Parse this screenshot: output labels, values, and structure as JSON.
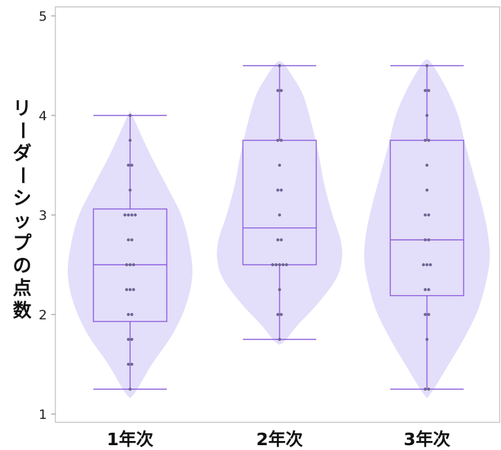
{
  "chart_data": {
    "type": "violin",
    "ylabel": "リーダーシップの点数",
    "ylim": [
      1,
      5
    ],
    "yticks": [
      1,
      2,
      3,
      4,
      5
    ],
    "grid": false,
    "colors": {
      "violin_fill": "#e3defa",
      "box_stroke": "#8a5bdc",
      "point": "#6e6690",
      "axis": "#c8c8c8"
    },
    "categories": [
      "1年次",
      "2年次",
      "3年次"
    ],
    "series": [
      {
        "category": "1年次",
        "min": 1.25,
        "q1": 1.93,
        "median": 2.5,
        "q3": 3.06,
        "max": 4.0,
        "points": [
          4.0,
          3.75,
          3.5,
          3.5,
          3.25,
          3.0,
          3.0,
          3.0,
          3.0,
          2.75,
          2.75,
          2.5,
          2.5,
          2.5,
          2.25,
          2.25,
          2.25,
          2.0,
          2.0,
          1.75,
          1.75,
          1.5,
          1.5,
          1.25
        ],
        "density": [
          [
            1.2,
            0.06
          ],
          [
            1.5,
            0.35
          ],
          [
            1.8,
            0.68
          ],
          [
            2.1,
            0.9
          ],
          [
            2.4,
            1.0
          ],
          [
            2.7,
            0.95
          ],
          [
            3.0,
            0.82
          ],
          [
            3.3,
            0.58
          ],
          [
            3.6,
            0.33
          ],
          [
            3.8,
            0.18
          ],
          [
            4.02,
            0.02
          ]
        ]
      },
      {
        "category": "2年次",
        "min": 1.75,
        "q1": 2.5,
        "median": 2.87,
        "q3": 3.75,
        "max": 4.5,
        "points": [
          4.5,
          4.25,
          4.25,
          3.75,
          3.75,
          3.5,
          3.25,
          3.25,
          3.0,
          2.75,
          2.75,
          2.5,
          2.5,
          2.5,
          2.5,
          2.5,
          2.25,
          2.0,
          2.0,
          1.75
        ],
        "density": [
          [
            1.72,
            0.06
          ],
          [
            1.9,
            0.3
          ],
          [
            2.1,
            0.6
          ],
          [
            2.35,
            0.9
          ],
          [
            2.55,
            1.0
          ],
          [
            2.75,
            0.98
          ],
          [
            3.0,
            0.85
          ],
          [
            3.3,
            0.72
          ],
          [
            3.6,
            0.63
          ],
          [
            3.9,
            0.52
          ],
          [
            4.2,
            0.38
          ],
          [
            4.4,
            0.2
          ],
          [
            4.53,
            0.05
          ]
        ]
      },
      {
        "category": "3年次",
        "min": 1.25,
        "q1": 2.19,
        "median": 2.75,
        "q3": 3.75,
        "max": 4.5,
        "points": [
          4.5,
          4.25,
          4.25,
          4.0,
          3.75,
          3.75,
          3.5,
          3.25,
          3.0,
          3.0,
          2.75,
          2.75,
          2.5,
          2.5,
          2.5,
          2.25,
          2.25,
          2.0,
          2.0,
          1.75,
          1.25,
          1.25
        ],
        "density": [
          [
            1.2,
            0.05
          ],
          [
            1.5,
            0.35
          ],
          [
            1.8,
            0.63
          ],
          [
            2.1,
            0.85
          ],
          [
            2.5,
            1.0
          ],
          [
            2.8,
            0.98
          ],
          [
            3.1,
            0.88
          ],
          [
            3.4,
            0.75
          ],
          [
            3.7,
            0.62
          ],
          [
            4.0,
            0.5
          ],
          [
            4.25,
            0.33
          ],
          [
            4.45,
            0.15
          ],
          [
            4.55,
            0.04
          ]
        ]
      }
    ]
  }
}
